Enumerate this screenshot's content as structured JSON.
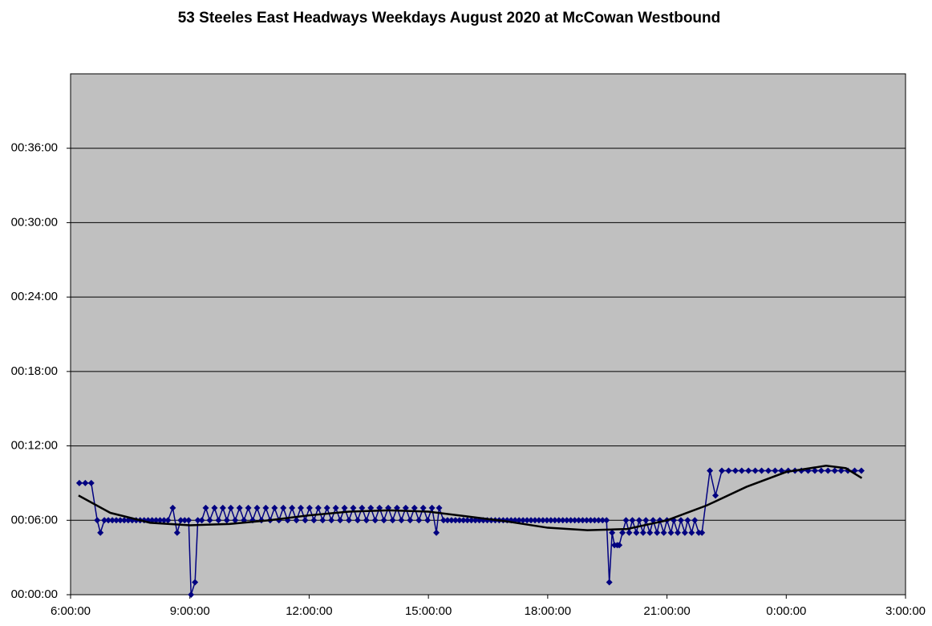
{
  "chart_data": {
    "type": "line",
    "title": "53 Steeles East Headways Weekdays August 2020 at McCowan Westbound",
    "xlim": [
      6,
      27
    ],
    "xticks": [
      {
        "value": 6,
        "label": "6:00:00"
      },
      {
        "value": 9,
        "label": "9:00:00"
      },
      {
        "value": 12,
        "label": "12:00:00"
      },
      {
        "value": 15,
        "label": "15:00:00"
      },
      {
        "value": 18,
        "label": "18:00:00"
      },
      {
        "value": 21,
        "label": "21:00:00"
      },
      {
        "value": 24,
        "label": "0:00:00"
      },
      {
        "value": 27,
        "label": "3:00:00"
      }
    ],
    "ylim": [
      0,
      42
    ],
    "yticks": [
      {
        "value": 0,
        "label": "00:00:00"
      },
      {
        "value": 6,
        "label": "00:06:00"
      },
      {
        "value": 12,
        "label": "00:12:00"
      },
      {
        "value": 18,
        "label": "00:18:00"
      },
      {
        "value": 24,
        "label": "00:24:00"
      },
      {
        "value": 30,
        "label": "00:30:00"
      },
      {
        "value": 36,
        "label": "00:36:00"
      }
    ],
    "grid": true,
    "plot_background": "#c0c0c0",
    "series": [
      {
        "color": "#000080",
        "markers": true,
        "x": [
          6.22,
          6.37,
          6.52,
          6.67,
          6.75,
          6.85,
          6.95,
          7.05,
          7.15,
          7.25,
          7.35,
          7.45,
          7.55,
          7.65,
          7.75,
          7.85,
          7.95,
          8.05,
          8.15,
          8.25,
          8.35,
          8.45,
          8.57,
          8.68,
          8.77,
          8.87,
          8.97,
          9.03,
          9.13,
          9.2,
          9.3,
          9.4,
          9.5,
          9.62,
          9.72,
          9.83,
          9.93,
          10.03,
          10.14,
          10.25,
          10.36,
          10.47,
          10.58,
          10.69,
          10.8,
          10.91,
          11.02,
          11.13,
          11.24,
          11.35,
          11.46,
          11.57,
          11.68,
          11.79,
          11.9,
          12.01,
          12.12,
          12.23,
          12.34,
          12.45,
          12.56,
          12.67,
          12.78,
          12.89,
          13.0,
          13.11,
          13.22,
          13.33,
          13.44,
          13.55,
          13.66,
          13.77,
          13.88,
          13.99,
          14.1,
          14.21,
          14.32,
          14.43,
          14.54,
          14.65,
          14.76,
          14.87,
          14.98,
          15.09,
          15.2,
          15.27,
          15.38,
          15.48,
          15.58,
          15.68,
          15.78,
          15.88,
          15.98,
          16.08,
          16.18,
          16.28,
          16.38,
          16.48,
          16.58,
          16.68,
          16.78,
          16.88,
          16.98,
          17.08,
          17.18,
          17.28,
          17.38,
          17.48,
          17.58,
          17.68,
          17.78,
          17.88,
          17.98,
          18.08,
          18.18,
          18.28,
          18.38,
          18.48,
          18.58,
          18.68,
          18.78,
          18.88,
          18.98,
          19.08,
          19.18,
          19.28,
          19.38,
          19.48,
          19.55,
          19.62,
          19.68,
          19.75,
          19.8,
          19.88,
          19.97,
          20.05,
          20.13,
          20.23,
          20.3,
          20.4,
          20.47,
          20.57,
          20.65,
          20.75,
          20.82,
          20.92,
          21.0,
          21.1,
          21.17,
          21.27,
          21.35,
          21.45,
          21.52,
          21.62,
          21.7,
          21.8,
          21.88,
          22.08,
          22.22,
          22.38,
          22.55,
          22.72,
          22.88,
          23.05,
          23.22,
          23.38,
          23.55,
          23.72,
          23.88,
          24.05,
          24.22,
          24.38,
          24.55,
          24.72,
          24.88,
          25.05,
          25.22,
          25.38,
          25.55,
          25.72,
          25.89
        ],
        "values": [
          9,
          9,
          9,
          6,
          5,
          6,
          6,
          6,
          6,
          6,
          6,
          6,
          6,
          6,
          6,
          6,
          6,
          6,
          6,
          6,
          6,
          6,
          7,
          5,
          6,
          6,
          6,
          0,
          1,
          6,
          6,
          7,
          6,
          7,
          6,
          7,
          6,
          7,
          6,
          7,
          6,
          7,
          6,
          7,
          6,
          7,
          6,
          7,
          6,
          7,
          6,
          7,
          6,
          7,
          6,
          7,
          6,
          7,
          6,
          7,
          6,
          7,
          6,
          7,
          6,
          7,
          6,
          7,
          6,
          7,
          6,
          7,
          6,
          7,
          6,
          7,
          6,
          7,
          6,
          7,
          6,
          7,
          6,
          7,
          5,
          7,
          6,
          6,
          6,
          6,
          6,
          6,
          6,
          6,
          6,
          6,
          6,
          6,
          6,
          6,
          6,
          6,
          6,
          6,
          6,
          6,
          6,
          6,
          6,
          6,
          6,
          6,
          6,
          6,
          6,
          6,
          6,
          6,
          6,
          6,
          6,
          6,
          6,
          6,
          6,
          6,
          6,
          6,
          1,
          5,
          4,
          4,
          4,
          5,
          6,
          5,
          6,
          5,
          6,
          5,
          6,
          5,
          6,
          5,
          6,
          5,
          6,
          5,
          6,
          5,
          6,
          5,
          6,
          5,
          6,
          5,
          5,
          10,
          8,
          10,
          10,
          10,
          10,
          10,
          10,
          10,
          10,
          10,
          10,
          10,
          10,
          10,
          10,
          10,
          10,
          10,
          10,
          10,
          10,
          10,
          10
        ]
      },
      {
        "color": "#000000",
        "markers": false,
        "x": [
          6.2,
          7,
          8,
          9,
          10,
          11,
          12,
          13,
          14,
          15,
          16,
          17,
          18,
          19,
          20,
          21,
          22,
          23,
          24,
          25,
          25.5,
          25.9
        ],
        "values": [
          8.0,
          6.6,
          5.8,
          5.6,
          5.7,
          6.0,
          6.4,
          6.7,
          6.8,
          6.7,
          6.3,
          5.9,
          5.4,
          5.2,
          5.3,
          6.0,
          7.2,
          8.7,
          9.9,
          10.4,
          10.2,
          9.4
        ]
      }
    ]
  }
}
